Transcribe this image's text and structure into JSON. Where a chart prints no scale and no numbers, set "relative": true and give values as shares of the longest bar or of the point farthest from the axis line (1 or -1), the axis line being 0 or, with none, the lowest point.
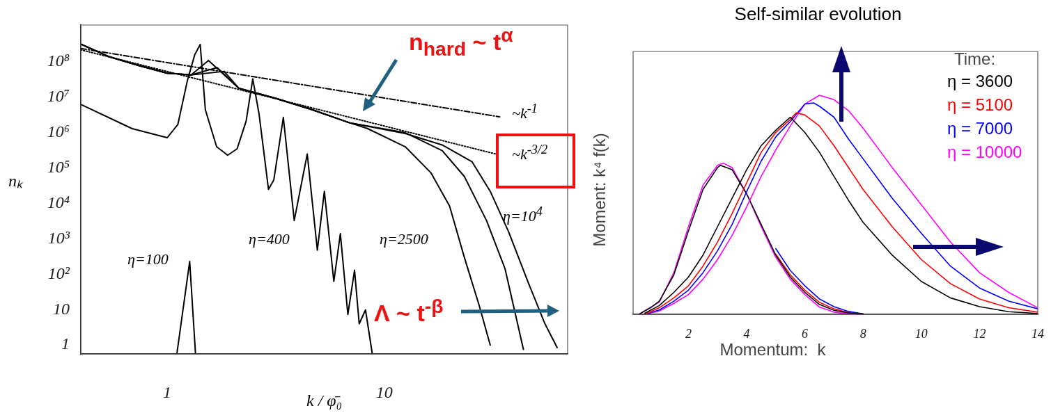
{
  "chart_data": [
    {
      "type": "line",
      "log": "xy",
      "xlabel": "k / φ̄₀",
      "ylabel": "nₖ",
      "marker": "none",
      "xlim": [
        0.4,
        70
      ],
      "ylim": [
        0.56,
        1100000000
      ],
      "xticks": [
        1,
        10
      ],
      "yticks": [
        1,
        10,
        {
          "value": 100,
          "label": "10²"
        },
        {
          "value": 1000,
          "label": "10³"
        },
        {
          "value": 10000,
          "label": "10⁴"
        },
        {
          "value": 100000,
          "label": "10⁵"
        },
        {
          "value": 1000000,
          "label": "10⁶"
        },
        {
          "value": 10000000,
          "label": "10⁷"
        },
        {
          "value": 100000000,
          "label": "10⁸"
        }
      ],
      "annotations": [
        "n$_{hard}$ ~ t$^{α}$",
        "Λ ~ t$^{-β}$",
        "~k$^{-1}$",
        "~k$^{-3/2}$",
        "η=100",
        "η=400",
        "η=2500",
        "η=10$^{4}$"
      ],
      "series": [
        {
          "color": "#000000",
          "x": [
            1.11,
            1.27,
            1.35
          ],
          "values": [
            0.6,
            230,
            0.6
          ]
        },
        {
          "color": "#000000",
          "x": [
            0.4,
            0.69,
            1.0,
            1.12,
            1.24,
            1.34,
            1.42,
            1.5,
            1.69,
            1.9,
            2.1,
            2.31,
            2.48,
            2.65,
            2.93,
            3.1,
            3.43,
            3.85,
            4.42,
            4.92,
            5.3,
            5.86,
            6.28,
            6.8,
            7.3,
            7.67,
            8.2,
            8.8
          ],
          "values": [
            6300000,
            1300000,
            720000,
            1700000,
            30000000,
            160000000,
            310000000,
            4400000,
            400000,
            230000,
            350000,
            2100000,
            33000000,
            3400000,
            25000,
            46000,
            2700000,
            3300,
            250000,
            480,
            22000,
            63,
            1400,
            7.3,
            130,
            4,
            9.8,
            0.6
          ]
        },
        {
          "color": "#000000",
          "x": [
            0.4,
            0.54,
            0.74,
            1.0,
            1.29,
            1.55,
            2.14,
            3.17,
            4.68,
            6.93,
            8.4,
            12.5,
            16.4,
            20,
            23.4,
            27.4,
            30.8
          ],
          "values": [
            320000000,
            140000000,
            79000000,
            48000000,
            43000000,
            110000000,
            18000000,
            9300000,
            4400000,
            1900000,
            1300000,
            400000,
            74000,
            8500,
            300,
            13,
            1
          ]
        },
        {
          "color": "#000000",
          "x": [
            0.4,
            0.54,
            0.74,
            1.0,
            1.29,
            1.7,
            2.14,
            3.17,
            4.68,
            6.93,
            12.5,
            18.5,
            23.4,
            29.6,
            36,
            43.8
          ],
          "values": [
            320000000,
            140000000,
            79000000,
            48000000,
            43000000,
            69000000,
            18000000,
            9300000,
            4400000,
            1900000,
            1000000,
            310000,
            58000,
            3300,
            146,
            0.75
          ]
        },
        {
          "color": "#000000",
          "x": [
            0.4,
            0.54,
            0.74,
            1.0,
            1.29,
            1.83,
            2.14,
            3.17,
            4.68,
            6.93,
            12.5,
            18.5,
            25.4,
            30.8,
            37.4,
            45.5,
            55,
            62.6
          ],
          "values": [
            320000000,
            140000000,
            79000000,
            48000000,
            43000000,
            54000000,
            18000000,
            9300000,
            4400000,
            1900000,
            950000,
            450000,
            150000,
            22000,
            1600,
            71,
            4,
            0.85
          ]
        },
        {
          "type": "line",
          "color": "#000000",
          "line_style": "dashed",
          "x": [
            0.4,
            34
          ],
          "values": [
            240000000,
            2800000
          ]
        },
        {
          "type": "line",
          "color": "#000000",
          "line_style": "dotted",
          "x": [
            0.4,
            32.6
          ],
          "values": [
            220000000,
            250000
          ]
        }
      ]
    },
    {
      "type": "line",
      "relative": true,
      "title": "Self-similar evolution",
      "xlabel": "Momentum:  k",
      "ylabel": "Moment: k⁴ f(k)",
      "marker": "none",
      "xlim": [
        0.1,
        14
      ],
      "xticks": [
        2,
        4,
        6,
        8,
        10,
        12,
        14
      ],
      "legend": "top right",
      "legend_title": "Time:",
      "series": [
        {
          "name": "η = 3600",
          "color": "#000000",
          "x": [
            0.5,
            1,
            1.5,
            2,
            2.5,
            3,
            3.5,
            4,
            4.5,
            5,
            5.5,
            6,
            6.5,
            7,
            7.5,
            8,
            9,
            10,
            11,
            12,
            13,
            14
          ],
          "values": [
            0.005,
            0.04,
            0.1,
            0.17,
            0.27,
            0.4,
            0.53,
            0.66,
            0.77,
            0.84,
            0.9,
            0.83,
            0.74,
            0.63,
            0.52,
            0.42,
            0.27,
            0.15,
            0.075,
            0.035,
            0.012,
            0.004
          ]
        },
        {
          "name": "η = 5100",
          "color": "#ff0000",
          "x": [
            0.5,
            1,
            1.5,
            2,
            2.5,
            3,
            3.5,
            4,
            4.5,
            5,
            5.5,
            5.7,
            6,
            6.5,
            7,
            7.5,
            8,
            9,
            10,
            11,
            12,
            13,
            14
          ],
          "values": [
            0,
            0.03,
            0.075,
            0.13,
            0.22,
            0.33,
            0.46,
            0.6,
            0.74,
            0.83,
            0.89,
            0.92,
            0.91,
            0.86,
            0.77,
            0.67,
            0.57,
            0.4,
            0.25,
            0.14,
            0.07,
            0.03,
            0.01
          ]
        },
        {
          "name": "η = 7000",
          "color": "#0000ff",
          "x": [
            0.5,
            1,
            1.5,
            2,
            2.5,
            3,
            3.5,
            4,
            4.5,
            5,
            5.5,
            6,
            6.3,
            6.5,
            7,
            7.5,
            8,
            9,
            10,
            11,
            12,
            13,
            14
          ],
          "values": [
            0,
            0.02,
            0.06,
            0.11,
            0.19,
            0.29,
            0.41,
            0.56,
            0.7,
            0.81,
            0.88,
            0.96,
            0.965,
            0.95,
            0.9,
            0.8,
            0.71,
            0.53,
            0.37,
            0.22,
            0.12,
            0.06,
            0.025
          ]
        },
        {
          "name": "η = 10000",
          "color": "#ff00ff",
          "x": [
            0.5,
            1,
            1.5,
            2,
            2.5,
            3,
            3.5,
            4,
            4.5,
            5,
            5.5,
            6,
            6.5,
            7,
            7.5,
            8,
            9,
            10,
            11,
            12,
            13,
            14
          ],
          "values": [
            0,
            0.015,
            0.05,
            0.09,
            0.16,
            0.25,
            0.36,
            0.49,
            0.63,
            0.75,
            0.86,
            0.96,
            1,
            0.98,
            0.93,
            0.85,
            0.67,
            0.5,
            0.33,
            0.19,
            0.1,
            0.03
          ]
        },
        {
          "color": "#000000",
          "x": [
            0.3,
            0.7,
            1,
            1.5,
            2,
            2.5,
            3,
            3.1,
            3.5,
            4,
            4.5,
            5,
            5.5,
            6,
            6.5,
            7,
            7.5,
            8
          ],
          "values": [
            0,
            0.03,
            0.06,
            0.18,
            0.38,
            0.57,
            0.67,
            0.68,
            0.66,
            0.55,
            0.41,
            0.27,
            0.17,
            0.1,
            0.045,
            0.018,
            0.006,
            0.002
          ]
        },
        {
          "color": "#ff0000",
          "x": [
            5,
            5.5,
            6,
            6.5,
            7,
            7.5,
            8
          ],
          "values": [
            0.275,
            0.18,
            0.11,
            0.055,
            0.025,
            0.008,
            0
          ]
        },
        {
          "color": "#0000ff",
          "x": [
            5,
            5.5,
            6,
            6.5,
            7,
            7.5,
            8
          ],
          "values": [
            0.3,
            0.2,
            0.13,
            0.07,
            0.035,
            0.013,
            0.002
          ]
        },
        {
          "color": "#ff00ff",
          "x": [
            0.3,
            1,
            1.5,
            2,
            2.5,
            3,
            3.2,
            3.5,
            4,
            4.5,
            5,
            5.5,
            6,
            6.5,
            7,
            7.5,
            8
          ],
          "values": [
            0,
            0.056,
            0.19,
            0.4,
            0.59,
            0.68,
            0.69,
            0.67,
            0.55,
            0.4,
            0.26,
            0.16,
            0.09,
            0.033,
            0.01,
            0.002,
            0
          ]
        }
      ]
    }
  ]
}
